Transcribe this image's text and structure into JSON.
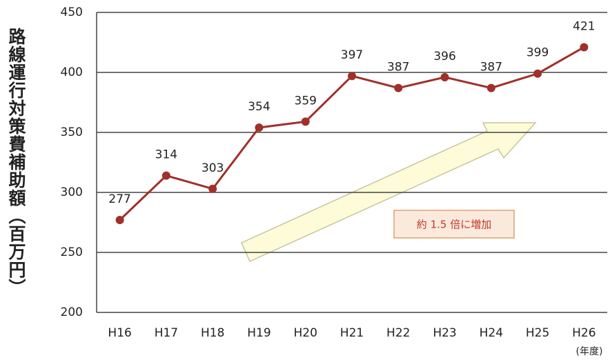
{
  "chart_data": {
    "type": "line",
    "y_label": "路線運行対策費補助額（百万円）",
    "x_unit": "(年度)",
    "annotation": "約 1.5 倍に増加",
    "categories": [
      "H16",
      "H17",
      "H18",
      "H19",
      "H20",
      "H21",
      "H22",
      "H23",
      "H24",
      "H25",
      "H26"
    ],
    "values": [
      277,
      314,
      303,
      354,
      359,
      397,
      387,
      396,
      387,
      399,
      421
    ],
    "color": "#a0302a",
    "ylim": [
      200,
      450
    ],
    "yticks": [
      200,
      250,
      300,
      350,
      400,
      450
    ],
    "grid": true
  }
}
